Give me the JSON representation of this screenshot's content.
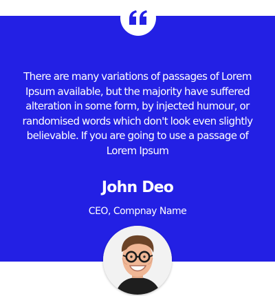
{
  "testimonial": {
    "quote": "There are many variations of passages of Lorem Ipsum available, but the majority have suffered alteration in some form, by injected humour, or randomised words which don't look even slightly believable. If you are going to use a passage of Lorem Ipsum",
    "name": "John Deo",
    "role": "CEO, Compnay Name",
    "quote_icon": "quote-icon",
    "avatar_icon": "avatar-photo"
  },
  "colors": {
    "card_background": "#2320e4",
    "badge_background": "#ffffff",
    "text": "#ffffff"
  }
}
